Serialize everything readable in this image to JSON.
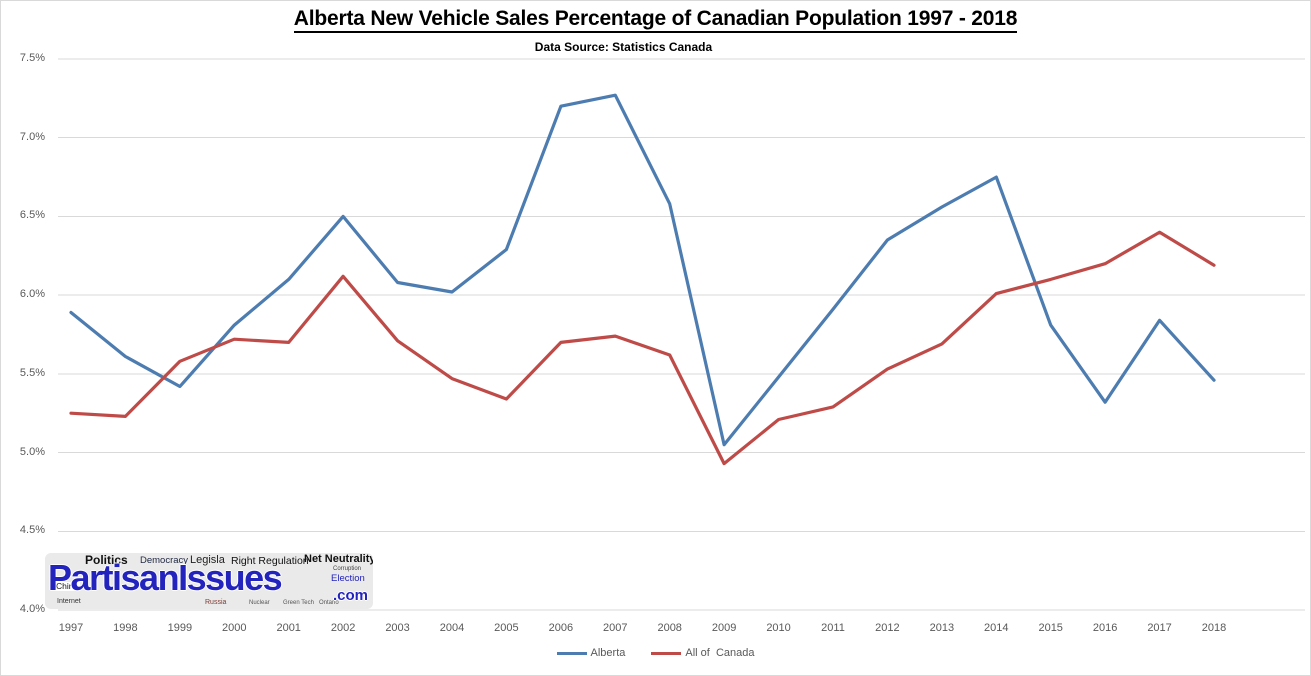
{
  "chart_data": {
    "type": "line",
    "title": "Alberta New Vehicle Sales Percentage of Canadian Population 1997 - 2018",
    "subtitle": "Data Source: Statistics Canada",
    "categories": [
      "1997",
      "1998",
      "1999",
      "2000",
      "2001",
      "2002",
      "2003",
      "2004",
      "2005",
      "2006",
      "2007",
      "2008",
      "2009",
      "2010",
      "2011",
      "2012",
      "2013",
      "2014",
      "2015",
      "2016",
      "2017",
      "2018"
    ],
    "series": [
      {
        "name": "Alberta",
        "color": "#4d7cb0",
        "values": [
          5.89,
          5.61,
          5.42,
          5.81,
          6.1,
          6.5,
          6.08,
          6.02,
          6.29,
          7.2,
          7.27,
          6.58,
          5.05,
          5.48,
          5.91,
          6.35,
          6.56,
          6.75,
          5.81,
          5.32,
          5.84,
          5.46
        ]
      },
      {
        "name": "All of  Canada",
        "color": "#be4b48",
        "values": [
          5.25,
          5.23,
          5.58,
          5.72,
          5.7,
          6.12,
          5.71,
          5.47,
          5.34,
          5.7,
          5.74,
          5.62,
          4.93,
          5.21,
          5.29,
          5.53,
          5.69,
          6.01,
          6.1,
          6.2,
          6.4,
          6.19
        ]
      }
    ],
    "ylim": [
      4.0,
      7.5
    ],
    "y_ticks": [
      "7.5%",
      "7.0%",
      "6.5%",
      "6.0%",
      "5.5%",
      "5.0%",
      "4.5%",
      "4.0%"
    ],
    "xlabel": "",
    "ylabel": "",
    "grid": true,
    "legend_position": "bottom"
  },
  "colors": {
    "gridline": "#d9d9d9",
    "axis_text": "#595959",
    "title_text": "#000000",
    "alberta_line": "#4d7cb0",
    "canada_line": "#be4b48",
    "watermark_bg": "#eaeaea",
    "watermark_blue": "#2323be"
  },
  "watermark": {
    "main": "PartisanIssues",
    "suffix": ".com",
    "words": [
      "Politics",
      "Democracy",
      "Legisla",
      "Right Regulation",
      "Net Neutrality",
      "Corruption",
      "Election",
      "China",
      "Internet",
      "Russia",
      "Nuclear",
      "Green Tech",
      "Ontario"
    ]
  }
}
